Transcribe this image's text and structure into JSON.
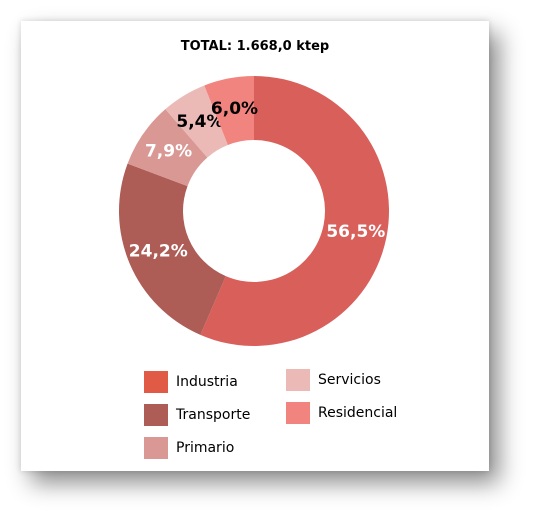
{
  "chart_data": {
    "type": "pie",
    "title": "TOTAL: 1.668,0 ktep",
    "slices": [
      {
        "label": "Industria",
        "value": 56.5,
        "value_label": "56,5%",
        "color": "#d95f5b",
        "legend_color": "#e05a45",
        "label_color": "#ffffff"
      },
      {
        "label": "Transporte",
        "value": 24.2,
        "value_label": "24,2%",
        "color": "#ad5c56",
        "legend_color": "#ad5c56",
        "label_color": "#ffffff"
      },
      {
        "label": "Primario",
        "value": 7.9,
        "value_label": "7,9%",
        "color": "#d99893",
        "legend_color": "#d99893",
        "label_color": "#ffffff"
      },
      {
        "label": "Servicios",
        "value": 5.4,
        "value_label": "5,4%",
        "color": "#ebbab6",
        "legend_color": "#ebbab6",
        "label_color": "#000000"
      },
      {
        "label": "Residencial",
        "value": 6.0,
        "value_label": "6,0%",
        "color": "#f28480",
        "legend_color": "#f28480",
        "label_color": "#000000"
      }
    ],
    "legend_placement": "bottom"
  }
}
